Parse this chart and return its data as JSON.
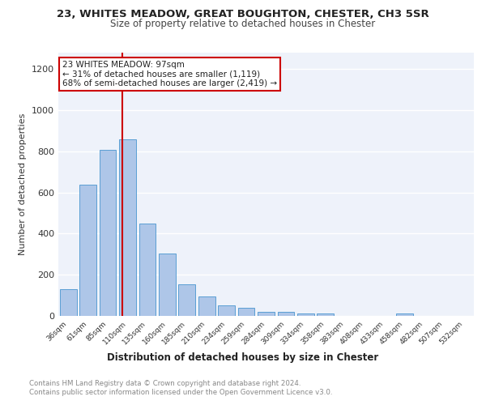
{
  "title1": "23, WHITES MEADOW, GREAT BOUGHTON, CHESTER, CH3 5SR",
  "title2": "Size of property relative to detached houses in Chester",
  "xlabel": "Distribution of detached houses by size in Chester",
  "ylabel": "Number of detached properties",
  "categories": [
    "36sqm",
    "61sqm",
    "85sqm",
    "110sqm",
    "135sqm",
    "160sqm",
    "185sqm",
    "210sqm",
    "234sqm",
    "259sqm",
    "284sqm",
    "309sqm",
    "334sqm",
    "358sqm",
    "383sqm",
    "408sqm",
    "433sqm",
    "458sqm",
    "482sqm",
    "507sqm",
    "532sqm"
  ],
  "values": [
    130,
    638,
    808,
    858,
    448,
    305,
    155,
    95,
    52,
    40,
    18,
    18,
    12,
    10,
    0,
    0,
    0,
    10,
    0,
    0,
    0
  ],
  "bar_color": "#aec6e8",
  "bar_edge_color": "#5a9fd4",
  "vline_x": 2.75,
  "vline_color": "#cc0000",
  "annotation_text": "23 WHITES MEADOW: 97sqm\n← 31% of detached houses are smaller (1,119)\n68% of semi-detached houses are larger (2,419) →",
  "annotation_box_color": "#ffffff",
  "annotation_box_edge": "#cc0000",
  "ylim": [
    0,
    1280
  ],
  "yticks": [
    0,
    200,
    400,
    600,
    800,
    1000,
    1200
  ],
  "footer1": "Contains HM Land Registry data © Crown copyright and database right 2024.",
  "footer2": "Contains public sector information licensed under the Open Government Licence v3.0.",
  "background_color": "#eef2fa",
  "grid_color": "#ffffff"
}
